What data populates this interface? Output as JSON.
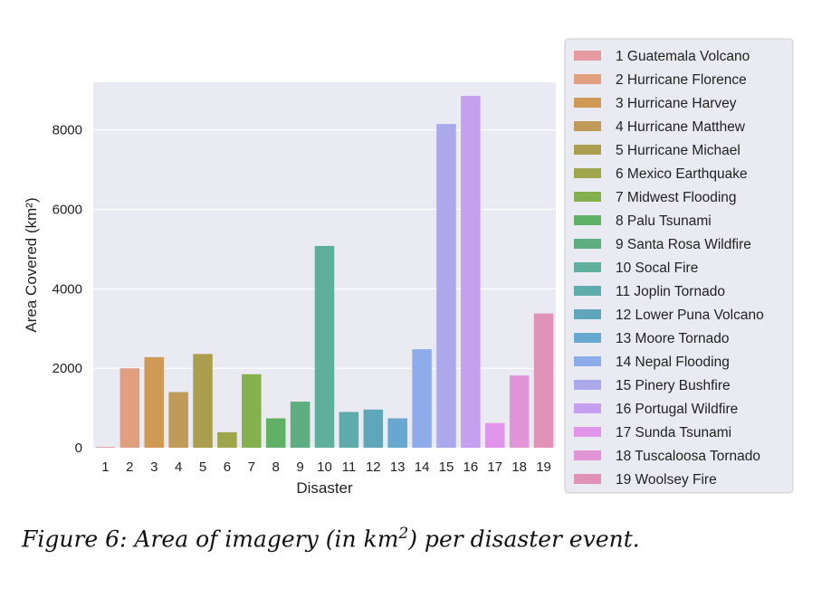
{
  "chart_data": {
    "type": "bar",
    "categories": [
      "1",
      "2",
      "3",
      "4",
      "5",
      "6",
      "7",
      "8",
      "9",
      "10",
      "11",
      "12",
      "13",
      "14",
      "15",
      "16",
      "17",
      "18",
      "19"
    ],
    "values": [
      20,
      2000,
      2280,
      1400,
      2360,
      390,
      1850,
      740,
      1160,
      5080,
      900,
      960,
      740,
      2480,
      8150,
      8860,
      620,
      1820,
      3380
    ],
    "xlabel": "Disaster",
    "ylabel": "Area Covered (km²)",
    "ylim": [
      0,
      9200
    ],
    "yticks": [
      0,
      2000,
      4000,
      6000,
      8000
    ],
    "grid": true,
    "legend_position": "right",
    "legend": [
      "1 Guatemala Volcano",
      "2 Hurricane Florence",
      "3 Hurricane Harvey",
      "4 Hurricane Matthew",
      "5 Hurricane Michael",
      "6 Mexico Earthquake",
      "7 Midwest Flooding",
      "8 Palu Tsunami",
      "9 Santa Rosa Wildfire",
      "10 Socal Fire",
      "11 Joplin Tornado",
      "12 Lower Puna Volcano",
      "13 Moore Tornado",
      "14 Nepal Flooding",
      "15 Pinery Bushfire",
      "16 Portugal Wildfire",
      "17 Sunda Tsunami",
      "18 Tuscaloosa Tornado",
      "19 Woolsey Fire"
    ],
    "colors": [
      "#e39ba0",
      "#e0a080",
      "#cf9a55",
      "#bf9a58",
      "#ac9e4f",
      "#9ea64c",
      "#84b04e",
      "#60b066",
      "#5eae82",
      "#5eaf9c",
      "#5eabab",
      "#60a6ba",
      "#67a7d0",
      "#8eacea",
      "#aba9ec",
      "#c79ff0",
      "#e094ea",
      "#e194d6",
      "#e092b8"
    ]
  },
  "caption": {
    "prefix": "Figure 6: Area of imagery (in km",
    "exponent": "2",
    "suffix": ") per disaster event."
  }
}
